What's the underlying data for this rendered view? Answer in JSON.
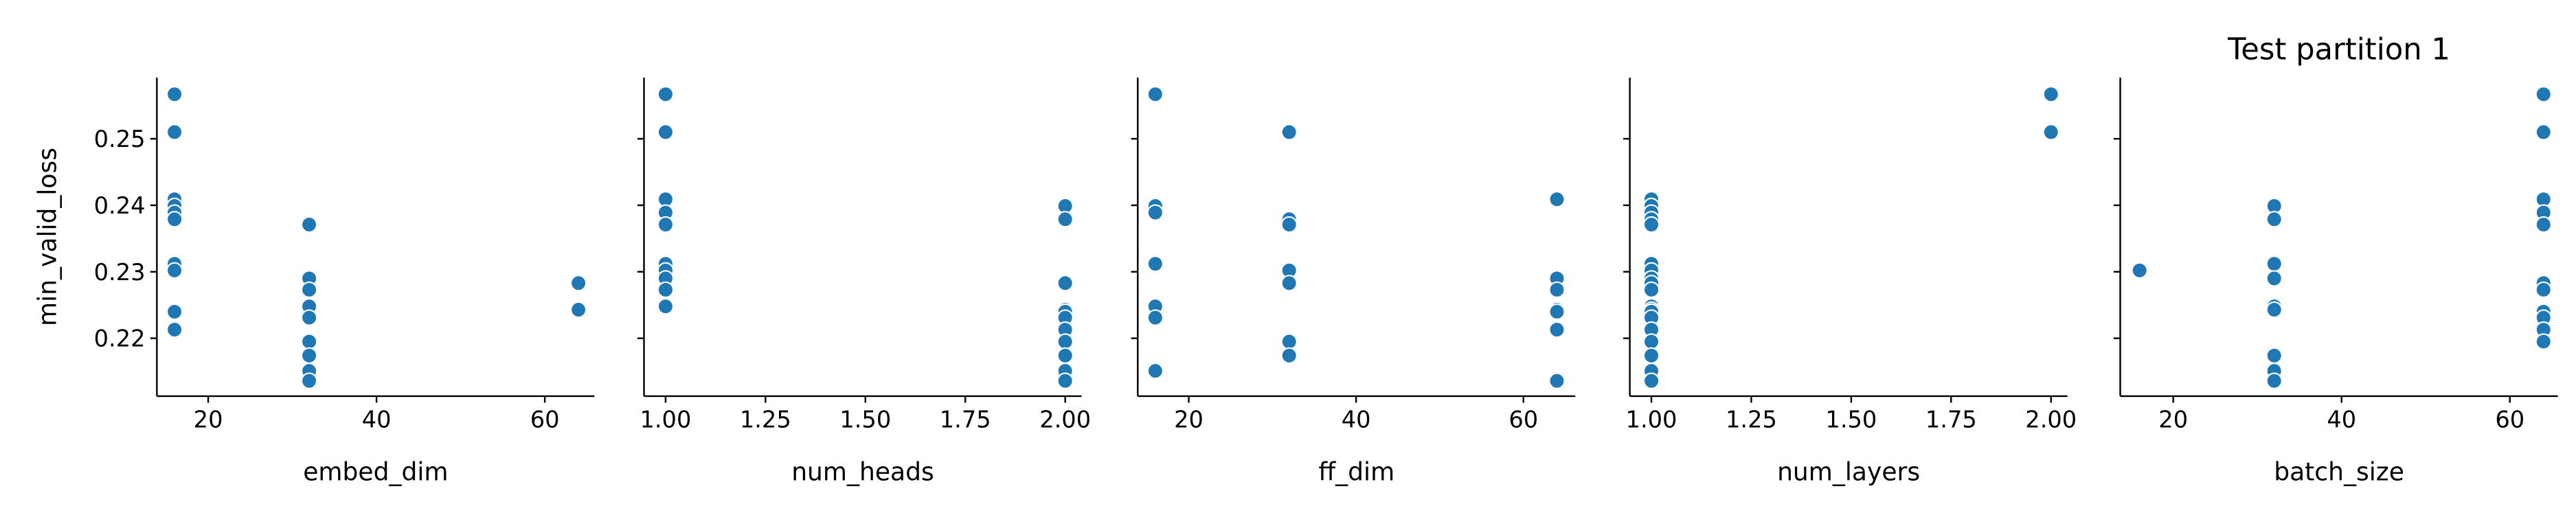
{
  "chart_data": [
    {
      "type": "scatter",
      "xlabel": "embed_dim",
      "ylabel": "min_valid_loss",
      "color": "#1f77b4",
      "x": [
        16,
        16,
        16,
        16,
        16,
        16,
        32,
        16,
        16,
        32,
        64,
        32,
        32,
        64,
        16,
        32,
        16,
        32,
        32,
        32,
        32
      ],
      "values": [
        0.2567,
        0.251,
        0.2409,
        0.2399,
        0.2389,
        0.2379,
        0.2371,
        0.2312,
        0.2302,
        0.229,
        0.2283,
        0.2273,
        0.2248,
        0.2243,
        0.224,
        0.2231,
        0.2213,
        0.2195,
        0.2174,
        0.2151,
        0.2136
      ],
      "xlim": [
        13.9,
        65.9
      ],
      "xticks": [
        20,
        40,
        60
      ],
      "ylim": [
        0.2113,
        0.2592
      ],
      "yticks": [
        0.22,
        0.23,
        0.24,
        0.25
      ]
    },
    {
      "type": "scatter",
      "xlabel": "num_heads",
      "color": "#1f77b4",
      "x": [
        1,
        1,
        1,
        2,
        1,
        2,
        1,
        1,
        1,
        1,
        2,
        1,
        1,
        2,
        2,
        2,
        2,
        2,
        2,
        2,
        2
      ],
      "values": [
        0.2567,
        0.251,
        0.2409,
        0.2399,
        0.2389,
        0.2379,
        0.2371,
        0.2312,
        0.2302,
        0.229,
        0.2283,
        0.2273,
        0.2248,
        0.2243,
        0.224,
        0.2231,
        0.2213,
        0.2195,
        0.2174,
        0.2151,
        0.2136
      ],
      "xlim": [
        0.946,
        2.041
      ],
      "xticks": [
        {
          "value": 1,
          "label": "1.00"
        },
        {
          "value": 1.25,
          "label": "1.25"
        },
        {
          "value": 1.5,
          "label": "1.50"
        },
        {
          "value": 1.75,
          "label": "1.75"
        },
        {
          "value": 2,
          "label": "2.00"
        }
      ],
      "ylim": [
        0.2113,
        0.2592
      ],
      "yticks": [
        0.22,
        0.23,
        0.24,
        0.25
      ]
    },
    {
      "type": "scatter",
      "xlabel": "ff_dim",
      "color": "#1f77b4",
      "x": [
        16,
        32,
        64,
        16,
        16,
        32,
        32,
        16,
        32,
        64,
        32,
        64,
        16,
        64,
        64,
        16,
        64,
        32,
        32,
        16,
        64
      ],
      "values": [
        0.2567,
        0.251,
        0.2409,
        0.2399,
        0.2389,
        0.2379,
        0.2371,
        0.2312,
        0.2302,
        0.229,
        0.2283,
        0.2273,
        0.2248,
        0.2243,
        0.224,
        0.2231,
        0.2213,
        0.2195,
        0.2174,
        0.2151,
        0.2136
      ],
      "xlim": [
        13.9,
        66.2
      ],
      "xticks": [
        20,
        40,
        60
      ],
      "ylim": [
        0.2113,
        0.2592
      ],
      "yticks": [
        0.22,
        0.23,
        0.24,
        0.25
      ]
    },
    {
      "type": "scatter",
      "xlabel": "num_layers",
      "color": "#1f77b4",
      "x": [
        2,
        2,
        1,
        1,
        1,
        1,
        1,
        1,
        1,
        1,
        1,
        1,
        1,
        1,
        1,
        1,
        1,
        1,
        1,
        1,
        1
      ],
      "values": [
        0.2567,
        0.251,
        0.2409,
        0.2399,
        0.2389,
        0.2379,
        0.2371,
        0.2312,
        0.2302,
        0.229,
        0.2283,
        0.2273,
        0.2248,
        0.2243,
        0.224,
        0.2231,
        0.2213,
        0.2195,
        0.2174,
        0.2151,
        0.2136
      ],
      "xlim": [
        0.946,
        2.041
      ],
      "xticks": [
        {
          "value": 1,
          "label": "1.00"
        },
        {
          "value": 1.25,
          "label": "1.25"
        },
        {
          "value": 1.5,
          "label": "1.50"
        },
        {
          "value": 1.75,
          "label": "1.75"
        },
        {
          "value": 2,
          "label": "2.00"
        }
      ],
      "ylim": [
        0.2113,
        0.2592
      ],
      "yticks": [
        0.22,
        0.23,
        0.24,
        0.25
      ]
    },
    {
      "type": "scatter",
      "title": "Test partition 1",
      "xlabel": "batch_size",
      "color": "#1f77b4",
      "x": [
        64,
        64,
        64,
        32,
        64,
        32,
        64,
        32,
        16,
        32,
        64,
        64,
        32,
        32,
        64,
        64,
        64,
        64,
        32,
        32,
        32
      ],
      "values": [
        0.2567,
        0.251,
        0.2409,
        0.2399,
        0.2389,
        0.2379,
        0.2371,
        0.2312,
        0.2302,
        0.229,
        0.2283,
        0.2273,
        0.2248,
        0.2243,
        0.224,
        0.2231,
        0.2213,
        0.2195,
        0.2174,
        0.2151,
        0.2136
      ],
      "xlim": [
        13.7,
        65.7
      ],
      "xticks": [
        20,
        40,
        60
      ],
      "ylim": [
        0.2113,
        0.2592
      ],
      "yticks": [
        0.22,
        0.23,
        0.24,
        0.25
      ]
    }
  ]
}
